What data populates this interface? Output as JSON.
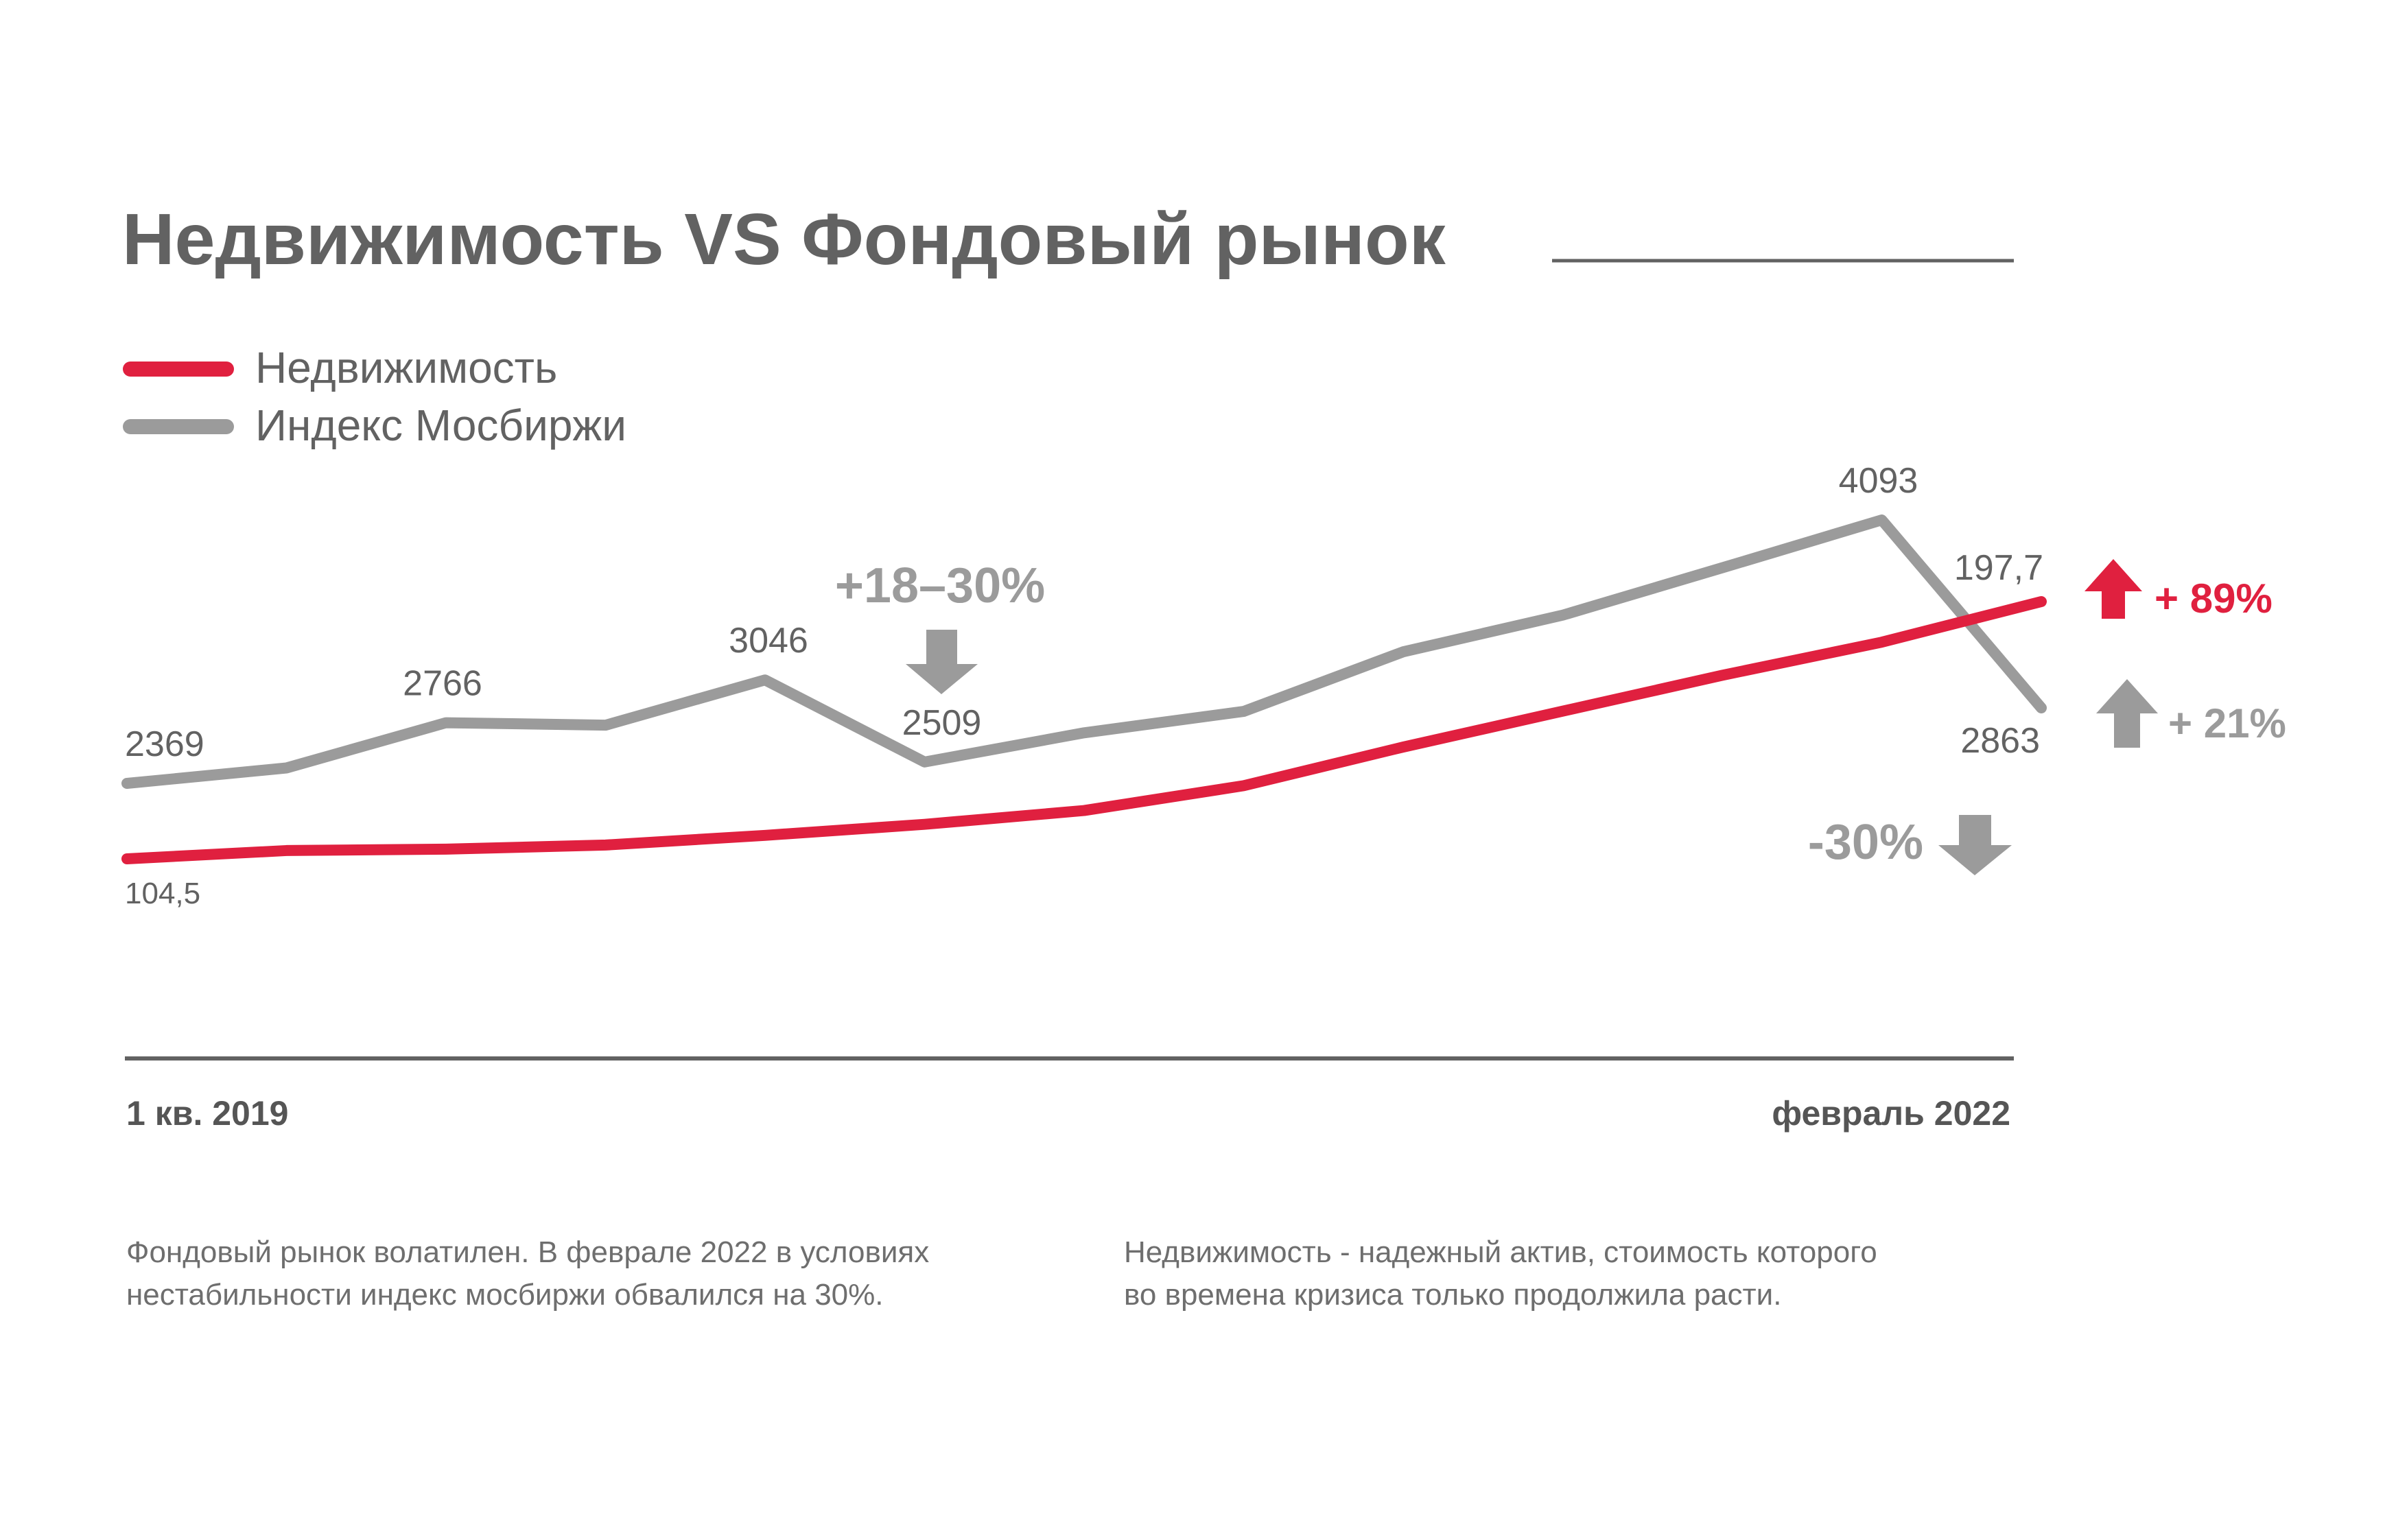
{
  "colors": {
    "real_estate": "#e0203f",
    "moex": "#9b9b9b",
    "text": "#626262",
    "axis": "#626262"
  },
  "chart_data": {
    "type": "line",
    "title": "Недвижимость VS Фондовый рынок",
    "x": [
      0,
      1,
      2,
      3,
      4,
      5,
      6,
      7,
      8,
      9,
      10,
      11,
      12
    ],
    "x_tick_labels": {
      "start": "1 кв. 2019",
      "end": "февраль 2022"
    },
    "legend_position": "top-left",
    "series": [
      {
        "name": "Недвижимость",
        "color": "#e0203f",
        "values": [
          104.5,
          107.5,
          108,
          109.5,
          113,
          117,
          122,
          131,
          145,
          158,
          171,
          183,
          197.7
        ],
        "labels": [
          {
            "index": 0,
            "text": "104,5"
          },
          {
            "index": 12,
            "text": "197,7"
          }
        ]
      },
      {
        "name": "Индекс Мосбиржи",
        "color": "#9b9b9b",
        "values": [
          2369,
          2470,
          2766,
          2750,
          3046,
          2509,
          2700,
          2840,
          3230,
          3470,
          3780,
          4093,
          2863
        ],
        "labels": [
          {
            "index": 0,
            "text": "2369"
          },
          {
            "index": 2,
            "text": "2766"
          },
          {
            "index": 4,
            "text": "3046"
          },
          {
            "index": 5,
            "text": "2509"
          },
          {
            "index": 11,
            "text": "4093"
          },
          {
            "index": 12,
            "text": "2863"
          }
        ]
      }
    ],
    "annotations": {
      "drop_range": "+18–30%",
      "moex_drop": "-30%",
      "real_estate_growth": "+ 89%",
      "moex_growth": "+ 21%"
    },
    "grid": false
  },
  "notes": {
    "left_line1": "Фондовый рынок волатилен. В феврале 2022 в условиях",
    "left_line2": "нестабильности индекс мосбиржи обвалился на 30%.",
    "right_line1": "Недвижимость - надежный актив, стоимость которого",
    "right_line2": "во времена кризиса только продолжила расти."
  }
}
